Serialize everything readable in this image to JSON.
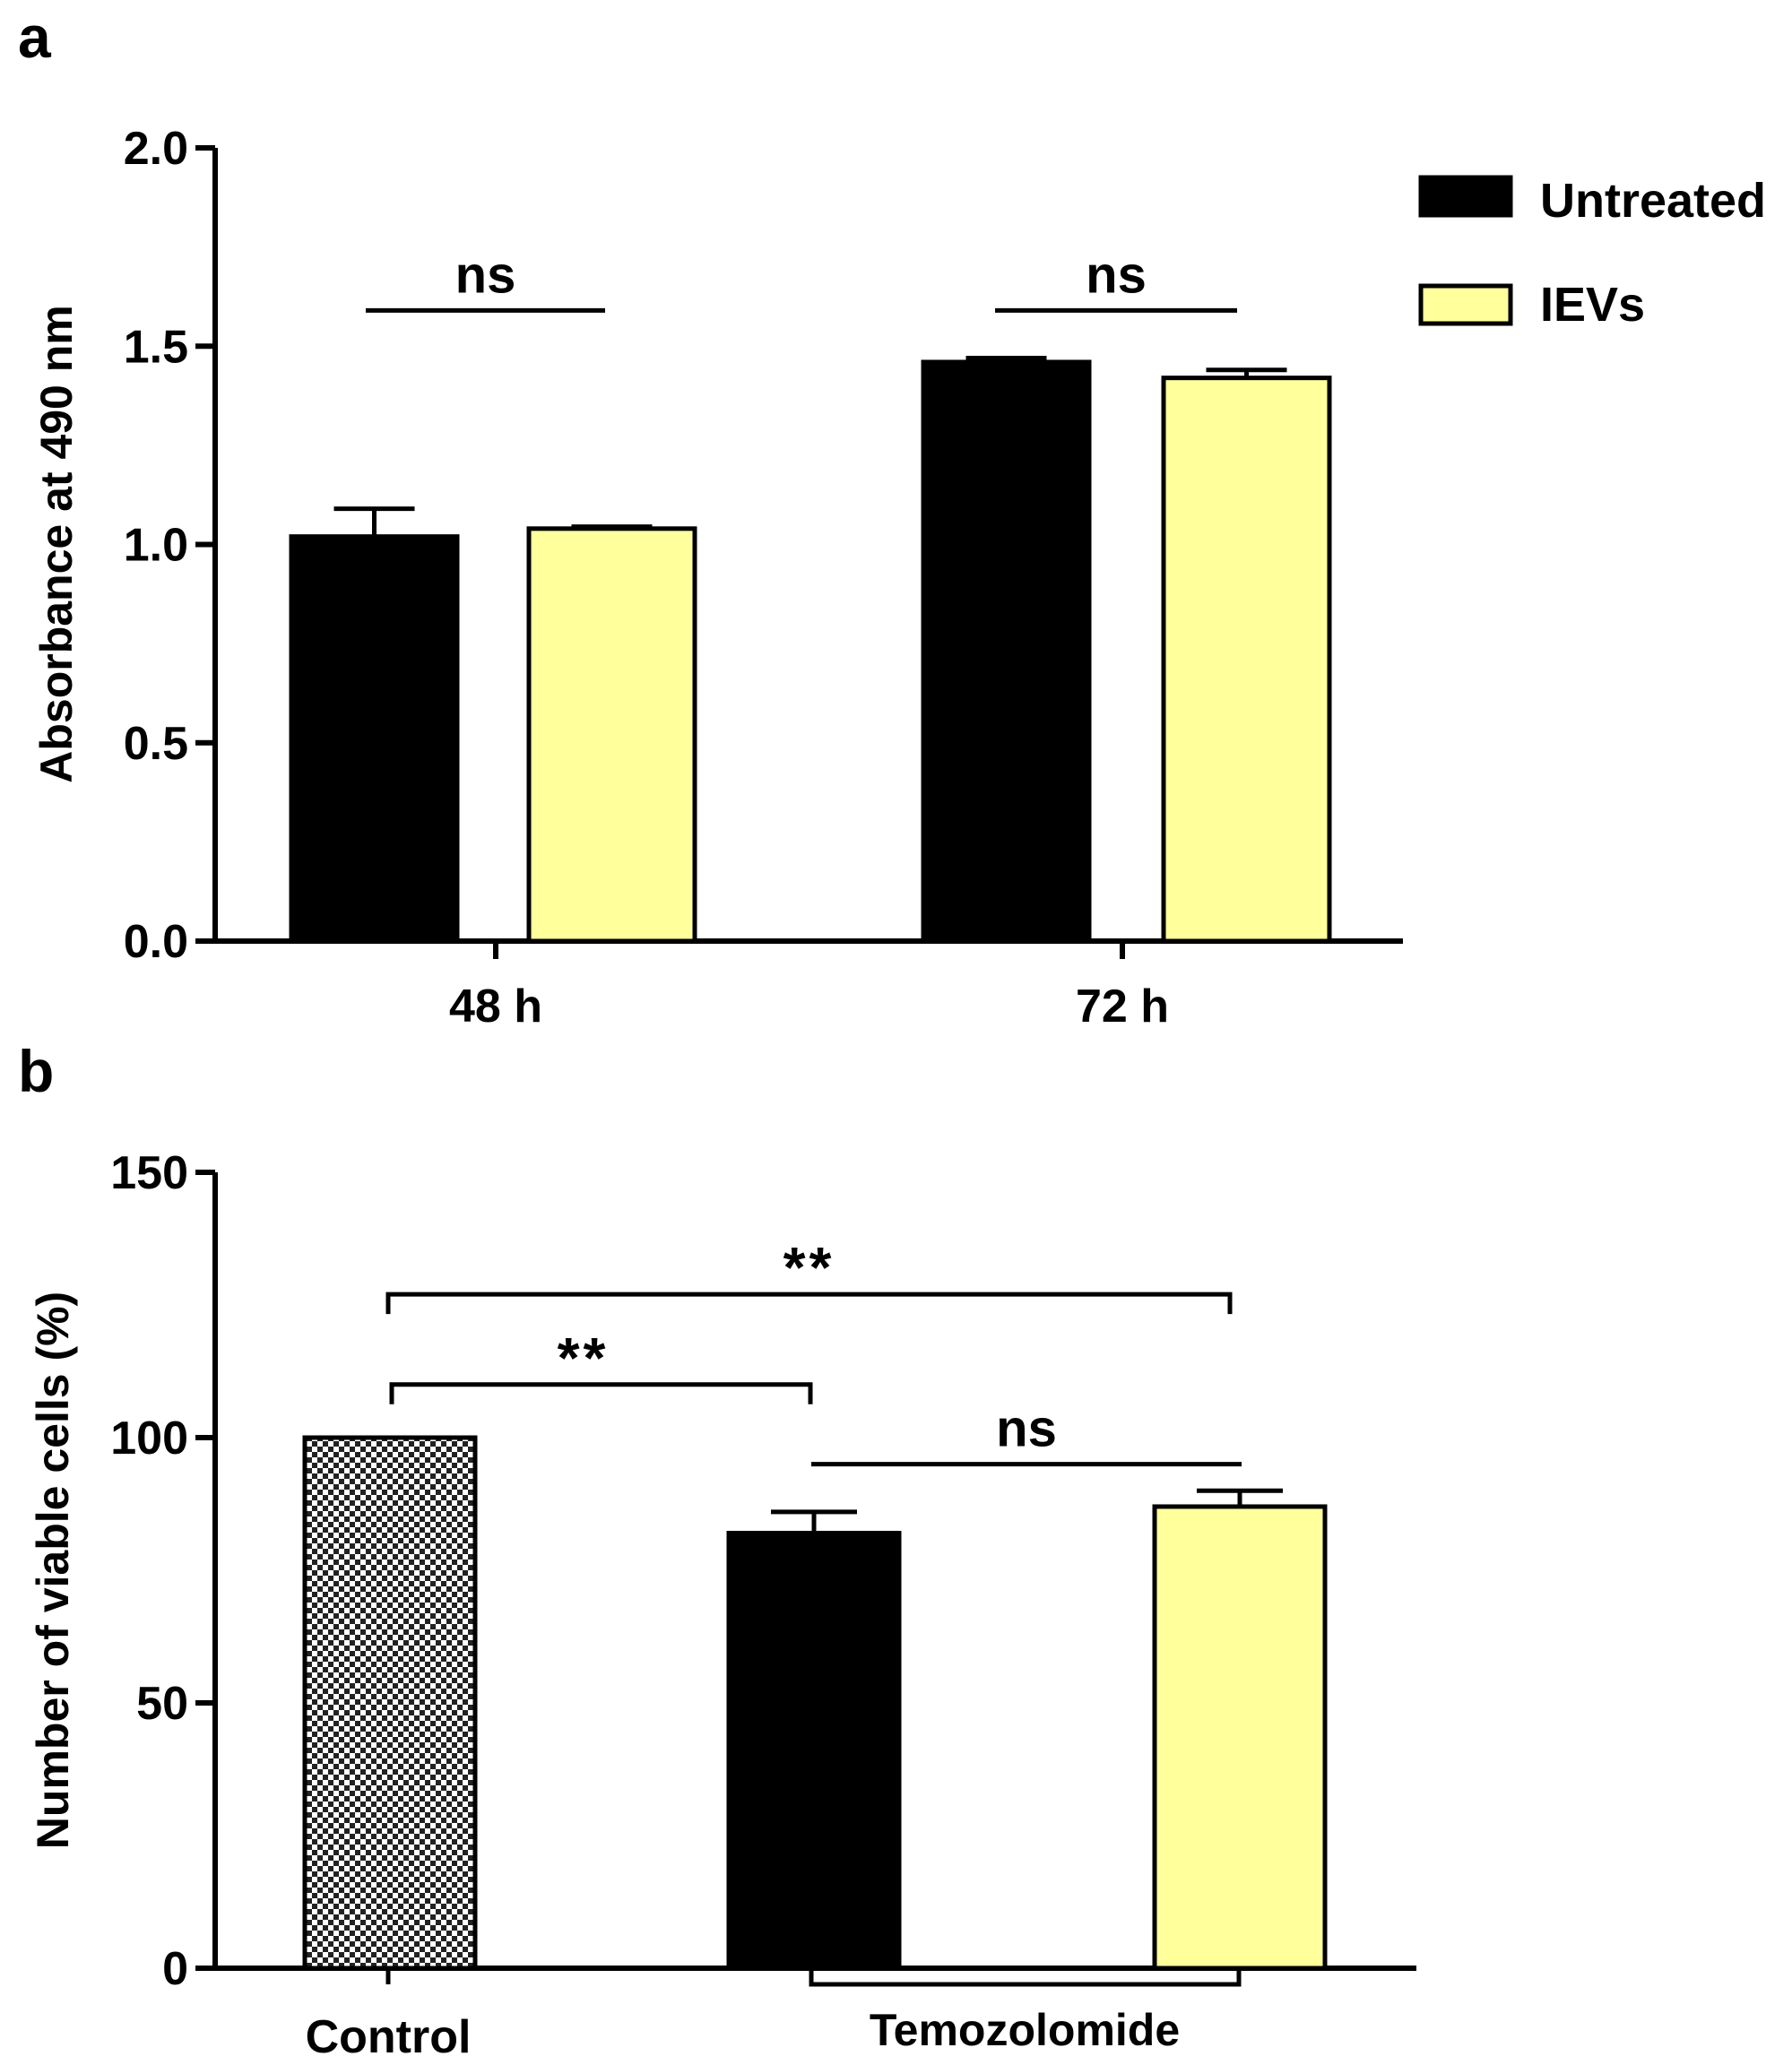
{
  "colors": {
    "untreated": "#000000",
    "ievs": "#ffff9c",
    "control_pattern": "checkerboard"
  },
  "chart_data": [
    {
      "panel": "a",
      "type": "bar",
      "ylabel": "Absorbance at 490 nm",
      "xlabel": "",
      "ylim": [
        0,
        2.0
      ],
      "yticks": [
        "0.0",
        "0.5",
        "1.0",
        "1.5",
        "2.0"
      ],
      "categories": [
        "48 h",
        "72 h"
      ],
      "series": [
        {
          "name": "Untreated",
          "color": "#000000",
          "values": [
            1.02,
            1.46
          ],
          "errors": [
            0.07,
            0.01
          ]
        },
        {
          "name": "IEVs",
          "color": "#ffff9c",
          "values": [
            1.04,
            1.42
          ],
          "errors": [
            0.005,
            0.02
          ]
        }
      ],
      "legend": {
        "position": "top-right",
        "entries": [
          "Untreated",
          "IEVs"
        ]
      },
      "annotations": [
        {
          "group": "48 h",
          "text": "ns",
          "y": 1.59
        },
        {
          "group": "72 h",
          "text": "ns",
          "y": 1.59
        }
      ]
    },
    {
      "panel": "b",
      "type": "bar",
      "ylabel": "Number of viable cells (%)",
      "xlabel": "",
      "ylim": [
        0,
        150
      ],
      "yticks": [
        "0",
        "50",
        "100",
        "150"
      ],
      "bars": [
        {
          "name": "Control",
          "fill": "checkerboard",
          "value": 100,
          "error": 0
        },
        {
          "name": "Temozolomide - Untreated",
          "fill": "#000000",
          "value": 82,
          "error": 4
        },
        {
          "name": "Temozolomide - IEVs",
          "fill": "#ffff9c",
          "value": 87,
          "error": 3
        }
      ],
      "group_labels": [
        "Control",
        "Temozolomide"
      ],
      "annotations": [
        {
          "from": 0,
          "to": 2,
          "text": "**",
          "y": 127
        },
        {
          "from": 0,
          "to": 1,
          "text": "**",
          "y": 110
        },
        {
          "from": 1,
          "to": 2,
          "text": "ns",
          "y": 95
        }
      ]
    }
  ]
}
